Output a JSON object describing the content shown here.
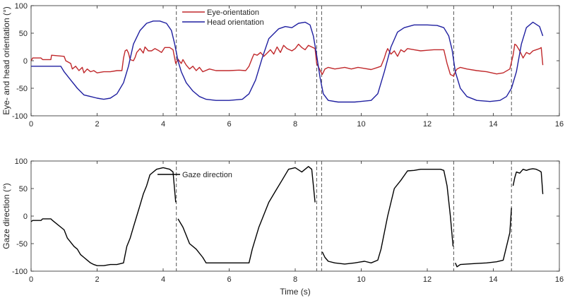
{
  "chart_data": [
    {
      "type": "line",
      "ylabel": "Eye- and head orientation (°)",
      "xlabel": "",
      "xlim": [
        0,
        16
      ],
      "ylim": [
        -100,
        100
      ],
      "xticks": [
        0,
        2,
        4,
        6,
        8,
        10,
        12,
        14,
        16
      ],
      "yticks": [
        -100,
        -50,
        0,
        50,
        100
      ],
      "vlines": [
        4.4,
        8.65,
        8.8,
        12.8,
        14.55
      ],
      "legend_position": "top",
      "series": [
        {
          "name": "Eye-orientation",
          "color": "#c0282b",
          "x": [
            0.0,
            0.05,
            0.3,
            0.35,
            0.6,
            0.62,
            1.0,
            1.05,
            1.2,
            1.25,
            1.35,
            1.45,
            1.55,
            1.6,
            1.7,
            1.8,
            1.9,
            2.0,
            2.2,
            2.4,
            2.6,
            2.75,
            2.8,
            2.85,
            2.9,
            2.95,
            3.0,
            3.1,
            3.15,
            3.2,
            3.3,
            3.4,
            3.45,
            3.55,
            3.65,
            3.75,
            3.85,
            3.95,
            4.05,
            4.2,
            4.3,
            4.38,
            4.45,
            4.55,
            4.6,
            4.7,
            4.8,
            4.9,
            5.0,
            5.1,
            5.2,
            5.4,
            5.6,
            5.8,
            6.0,
            6.3,
            6.5,
            6.6,
            6.7,
            6.75,
            6.85,
            6.95,
            7.05,
            7.15,
            7.25,
            7.35,
            7.45,
            7.55,
            7.65,
            7.75,
            7.9,
            8.0,
            8.1,
            8.2,
            8.3,
            8.4,
            8.5,
            8.6,
            8.65,
            8.82,
            8.9,
            9.0,
            9.2,
            9.5,
            9.7,
            9.9,
            10.1,
            10.3,
            10.5,
            10.6,
            10.7,
            10.75,
            10.8,
            10.9,
            11.0,
            11.1,
            11.2,
            11.3,
            11.4,
            11.6,
            11.8,
            12.0,
            12.2,
            12.4,
            12.5,
            12.6,
            12.7,
            12.8,
            12.85,
            12.9,
            13.0,
            13.2,
            13.5,
            13.8,
            14.1,
            14.3,
            14.5,
            14.6,
            14.65,
            14.7,
            14.8,
            14.9,
            15.0,
            15.1,
            15.2,
            15.3,
            15.4,
            15.45,
            15.5
          ],
          "y": [
            0,
            5,
            5,
            2,
            2,
            10,
            8,
            0,
            -5,
            -15,
            -10,
            -18,
            -12,
            -22,
            -15,
            -20,
            -18,
            -22,
            -20,
            -20,
            -18,
            -18,
            5,
            18,
            20,
            14,
            2,
            0,
            6,
            15,
            22,
            14,
            25,
            18,
            18,
            22,
            19,
            15,
            24,
            24,
            20,
            -5,
            3,
            -5,
            2,
            -8,
            -15,
            -10,
            -18,
            -12,
            -20,
            -15,
            -18,
            -18,
            -18,
            -17,
            -18,
            -10,
            5,
            12,
            10,
            15,
            8,
            14,
            20,
            12,
            25,
            15,
            28,
            22,
            18,
            22,
            30,
            24,
            20,
            28,
            25,
            22,
            -5,
            -25,
            -15,
            -12,
            -15,
            -12,
            -15,
            -12,
            -14,
            -16,
            -12,
            -10,
            5,
            15,
            22,
            12,
            18,
            8,
            20,
            16,
            22,
            20,
            18,
            19,
            20,
            20,
            20,
            -5,
            -25,
            -28,
            -20,
            -15,
            -12,
            -15,
            -18,
            -20,
            -24,
            -22,
            -15,
            10,
            30,
            28,
            18,
            5,
            15,
            12,
            18,
            20,
            22,
            24,
            -8
          ]
        },
        {
          "name": "Head orientation",
          "color": "#1f1fa0",
          "x": [
            0.0,
            0.5,
            0.9,
            1.0,
            1.2,
            1.4,
            1.6,
            1.8,
            2.0,
            2.2,
            2.4,
            2.6,
            2.8,
            2.95,
            3.1,
            3.3,
            3.5,
            3.7,
            3.9,
            4.1,
            4.25,
            4.35,
            4.45,
            4.55,
            4.7,
            4.9,
            5.1,
            5.3,
            5.6,
            6.0,
            6.4,
            6.6,
            6.8,
            7.0,
            7.2,
            7.5,
            7.7,
            7.9,
            8.1,
            8.3,
            8.45,
            8.55,
            8.65,
            8.75,
            8.85,
            9.0,
            9.3,
            9.8,
            10.3,
            10.5,
            10.7,
            10.9,
            11.1,
            11.3,
            11.6,
            12.0,
            12.3,
            12.5,
            12.65,
            12.75,
            12.85,
            13.0,
            13.2,
            13.5,
            13.9,
            14.2,
            14.4,
            14.55,
            14.7,
            14.85,
            15.0,
            15.2,
            15.4,
            15.5
          ],
          "y": [
            -10,
            -10,
            -10,
            -20,
            -35,
            -50,
            -62,
            -65,
            -68,
            -70,
            -68,
            -60,
            -40,
            -10,
            30,
            55,
            68,
            72,
            72,
            68,
            55,
            30,
            0,
            -20,
            -40,
            -55,
            -65,
            -70,
            -72,
            -72,
            -70,
            -60,
            -35,
            5,
            40,
            58,
            62,
            60,
            68,
            70,
            65,
            45,
            10,
            -30,
            -60,
            -72,
            -75,
            -75,
            -72,
            -60,
            -20,
            25,
            52,
            60,
            65,
            65,
            64,
            60,
            45,
            20,
            -20,
            -50,
            -65,
            -72,
            -74,
            -72,
            -65,
            -50,
            -20,
            30,
            60,
            70,
            62,
            45
          ]
        }
      ]
    },
    {
      "type": "line",
      "ylabel": "Gaze direction (°)",
      "xlabel": "Time (s)",
      "xlim": [
        0,
        16
      ],
      "ylim": [
        -100,
        100
      ],
      "xticks": [
        0,
        2,
        4,
        6,
        8,
        10,
        12,
        14,
        16
      ],
      "yticks": [
        -100,
        -50,
        0,
        50,
        100
      ],
      "vlines": [
        4.4,
        8.65,
        8.8,
        12.8,
        14.55
      ],
      "legend_position": "top-left",
      "series": [
        {
          "name": "Gaze direction",
          "color": "#000000",
          "segments": [
            {
              "x": [
                0.0,
                0.05,
                0.3,
                0.35,
                0.6,
                0.65,
                1.0,
                1.1,
                1.3,
                1.4,
                1.5,
                1.6,
                1.7,
                1.8,
                1.9,
                2.0,
                2.2,
                2.4,
                2.6,
                2.8,
                2.85,
                2.9,
                3.0,
                3.1,
                3.2,
                3.3,
                3.4,
                3.5,
                3.6,
                3.8,
                4.0,
                4.2,
                4.3,
                4.38
              ],
              "y": [
                -10,
                -8,
                -8,
                -5,
                -5,
                -8,
                -25,
                -40,
                -55,
                -60,
                -70,
                -75,
                -80,
                -85,
                -88,
                -90,
                -90,
                -88,
                -88,
                -85,
                -70,
                -55,
                -40,
                -20,
                0,
                20,
                40,
                55,
                75,
                85,
                88,
                85,
                80,
                25
              ]
            },
            {
              "x": [
                4.45,
                4.6,
                4.7,
                4.8,
                5.0,
                5.2,
                5.3,
                5.5,
                5.8,
                6.2,
                6.6,
                6.7,
                6.8,
                6.9,
                7.0,
                7.2,
                7.4,
                7.6,
                7.8,
                8.0,
                8.2,
                8.4,
                8.5,
                8.6
              ],
              "y": [
                -5,
                -20,
                -35,
                -50,
                -60,
                -75,
                -85,
                -85,
                -85,
                -85,
                -85,
                -60,
                -40,
                -20,
                -5,
                25,
                45,
                65,
                85,
                88,
                80,
                90,
                85,
                25
              ]
            },
            {
              "x": [
                8.82,
                8.9,
                9.0,
                9.2,
                9.5,
                9.8,
                10.1,
                10.3,
                10.5,
                10.6,
                10.7,
                10.8,
                10.9,
                11.0,
                11.2,
                11.4,
                11.6,
                11.8,
                12.0,
                12.2,
                12.4,
                12.5,
                12.6,
                12.7,
                12.78
              ],
              "y": [
                -65,
                -75,
                -82,
                -85,
                -87,
                -85,
                -82,
                -85,
                -80,
                -60,
                -30,
                0,
                25,
                50,
                65,
                82,
                83,
                85,
                85,
                85,
                85,
                83,
                55,
                0,
                -55
              ]
            },
            {
              "x": [
                12.85,
                12.9,
                13.0,
                13.2,
                13.5,
                13.8,
                14.1,
                14.3,
                14.4,
                14.5,
                14.55
              ],
              "y": [
                -85,
                -92,
                -88,
                -87,
                -86,
                -85,
                -83,
                -80,
                -55,
                -30,
                15
              ]
            },
            {
              "x": [
                14.6,
                14.65,
                14.7,
                14.8,
                14.9,
                15.0,
                15.1,
                15.2,
                15.3,
                15.4,
                15.45,
                15.5
              ],
              "y": [
                55,
                70,
                80,
                78,
                85,
                83,
                85,
                86,
                85,
                82,
                80,
                40
              ]
            }
          ]
        }
      ]
    }
  ]
}
